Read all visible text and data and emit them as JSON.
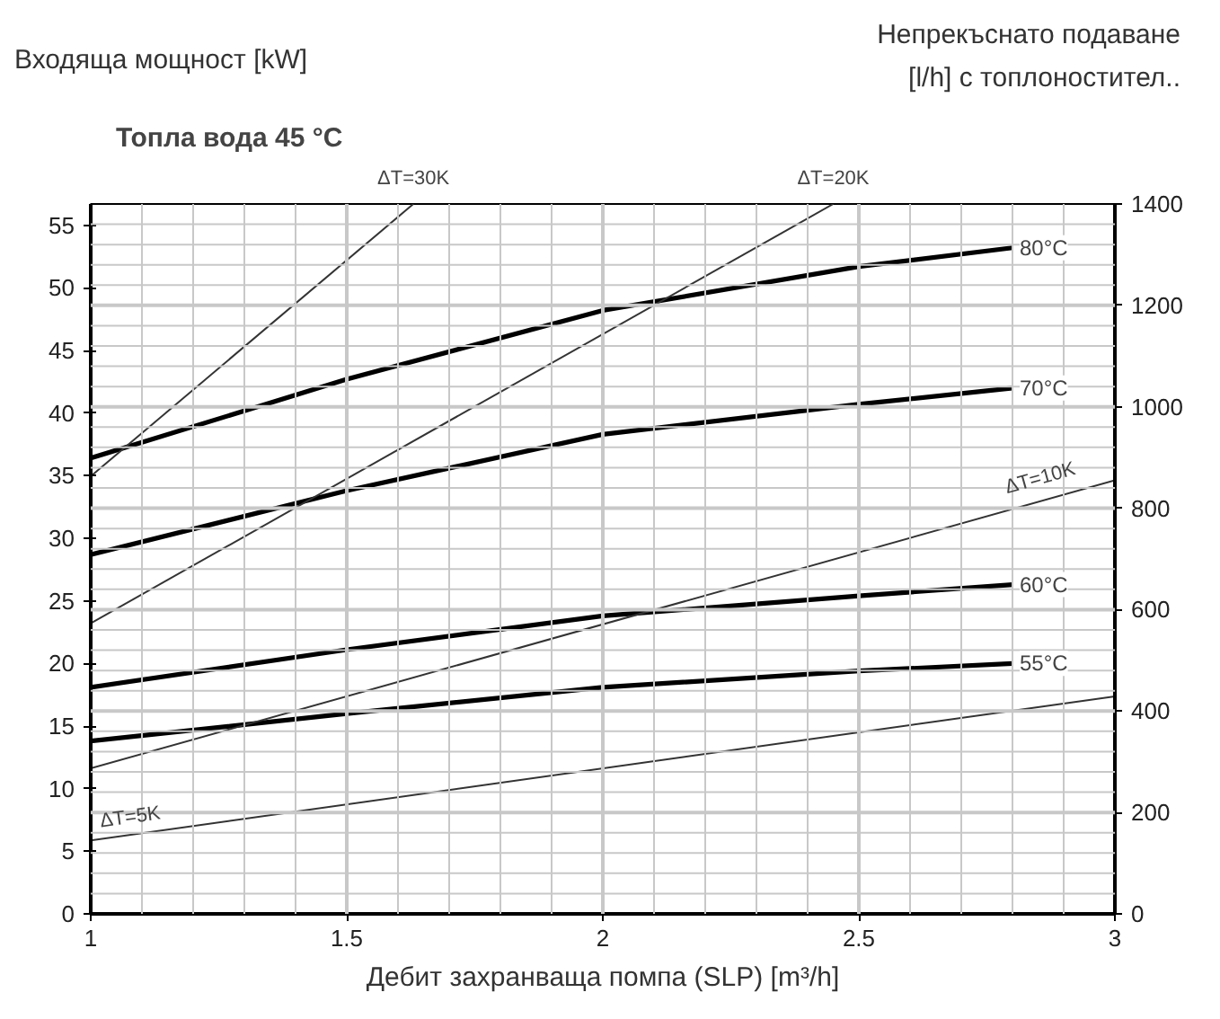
{
  "chart_data": {
    "type": "line",
    "title": "Топла вода 45 °C",
    "xlabel": "Дебит захранваща помпа (SLP) [m³/h]",
    "x": [
      1,
      1.5,
      2,
      2.5,
      2.8
    ],
    "series": [
      {
        "name": "80°C",
        "color": "#000000",
        "values": [
          36.4,
          42.7,
          48.2,
          51.7,
          53.2
        ]
      },
      {
        "name": "70°C",
        "color": "#000000",
        "values": [
          28.7,
          33.8,
          38.3,
          40.7,
          42.0
        ]
      },
      {
        "name": "60°C",
        "color": "#000000",
        "values": [
          18.1,
          21.1,
          23.8,
          25.4,
          26.3
        ]
      },
      {
        "name": "55°C",
        "color": "#000000",
        "values": [
          13.8,
          16.0,
          18.1,
          19.4,
          20.0
        ]
      },
      {
        "color": "#333333",
        "axis": "y2",
        "x": [
          1,
          1.63
        ],
        "values": [
          863,
          1400
        ]
      },
      {
        "color": "#333333",
        "axis": "y2",
        "x": [
          1,
          2.45
        ],
        "values": [
          573,
          1400
        ]
      },
      {
        "color": "#333333",
        "axis": "y2",
        "x": [
          1,
          3
        ],
        "values": [
          287,
          855
        ]
      },
      {
        "color": "#333333",
        "axis": "y2",
        "x": [
          1,
          3
        ],
        "values": [
          145,
          429
        ]
      }
    ],
    "annotations": [
      "Входяща мощност [kW]",
      "Непрекъснато подаване\n[l/h] с топлоностител..",
      {
        "text": "ΔT=30K",
        "x": 1.63,
        "y": 56.7
      },
      {
        "text": "ΔT=20K",
        "x": 2.45,
        "y": 56.7
      },
      {
        "text": "ΔT=10K",
        "x": 2.86,
        "y": 33.5
      },
      {
        "text": "ΔT=5K",
        "x": 1.08,
        "y": 6.4
      }
    ],
    "xlim": [
      1,
      3
    ],
    "xticks": [
      1,
      1.5,
      2,
      2.5,
      3
    ],
    "ylim": [
      0,
      56.7
    ],
    "yticks": [
      0,
      5,
      10,
      15,
      20,
      25,
      30,
      35,
      40,
      45,
      50,
      55
    ],
    "y2lim": [
      0,
      1400
    ],
    "y2ticks": [
      0,
      200,
      400,
      600,
      800,
      1000,
      1200,
      1400
    ],
    "grid": true,
    "marker": "none",
    "line_style": "solid"
  }
}
